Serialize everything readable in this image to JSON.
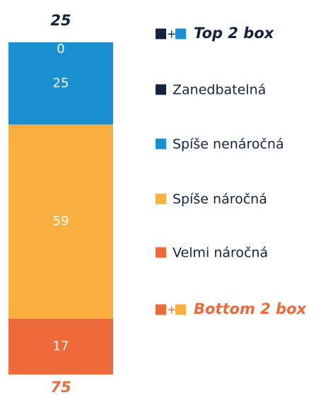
{
  "chart_data": {
    "type": "stacked_bar",
    "series": [
      {
        "name": "Velmi náročná",
        "color": "#ee6a3a",
        "values": [
          17
        ]
      },
      {
        "name": "Spíše náročná",
        "color": "#f9b040",
        "values": [
          59
        ]
      },
      {
        "name": "Spíše nenáročná",
        "color": "#1b90d0",
        "values": [
          25
        ]
      },
      {
        "name": "Zanedbatelná",
        "color": "#14243f",
        "values": [
          0
        ]
      }
    ],
    "ylim": [
      0,
      101
    ],
    "plus": "+",
    "top_box": {
      "label": "Top 2 box",
      "value": 25,
      "color": "#14243f"
    },
    "bottom_box": {
      "label": "Bottom 2 box",
      "value": 75,
      "color": "#ee6a3a"
    }
  }
}
